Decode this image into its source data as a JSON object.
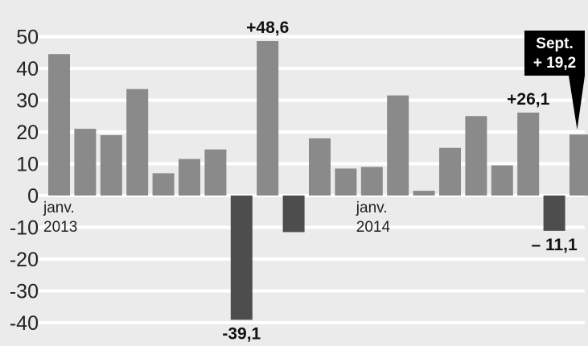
{
  "chart_data": {
    "type": "bar",
    "title": "",
    "xlabel": "",
    "ylabel": "",
    "ylim": [
      -45,
      52
    ],
    "yticks": [
      50,
      40,
      30,
      20,
      10,
      0,
      -10,
      -20,
      -30,
      -40
    ],
    "grid": true,
    "x": [
      "2013-01",
      "2013-02",
      "2013-03",
      "2013-04",
      "2013-05",
      "2013-06",
      "2013-07",
      "2013-08",
      "2013-09",
      "2013-10",
      "2013-11",
      "2013-12",
      "2014-01",
      "2014-02",
      "2014-03",
      "2014-04",
      "2014-05",
      "2014-06",
      "2014-07",
      "2014-08",
      "2014-09"
    ],
    "values": [
      44.5,
      21,
      19,
      33.5,
      7,
      11.5,
      14.5,
      -39.1,
      48.6,
      -11.5,
      18,
      8.5,
      9,
      31.5,
      1.5,
      15,
      25,
      9.5,
      26.1,
      -11.1,
      19.2
    ],
    "category_labels": [
      {
        "index": 0,
        "line1": "janv.",
        "line2": "2013"
      },
      {
        "index": 12,
        "line1": "janv.",
        "line2": "2014"
      }
    ],
    "annotations": [
      {
        "index": 8,
        "text": "+48,6"
      },
      {
        "index": 7,
        "text": "-39,1"
      },
      {
        "index": 18,
        "text": "+26,1"
      },
      {
        "index": 19,
        "text": "– 11,1"
      }
    ],
    "callout": {
      "index": 20,
      "line1": "Sept.",
      "line2": "+ 19,2"
    },
    "colors": {
      "background": "#ebebeb",
      "grid": "#ffffff",
      "positive_bar": "#8a8a8a",
      "negative_bar": "#4d4d4d",
      "callout_bg": "#000000",
      "callout_text": "#ffffff"
    }
  }
}
